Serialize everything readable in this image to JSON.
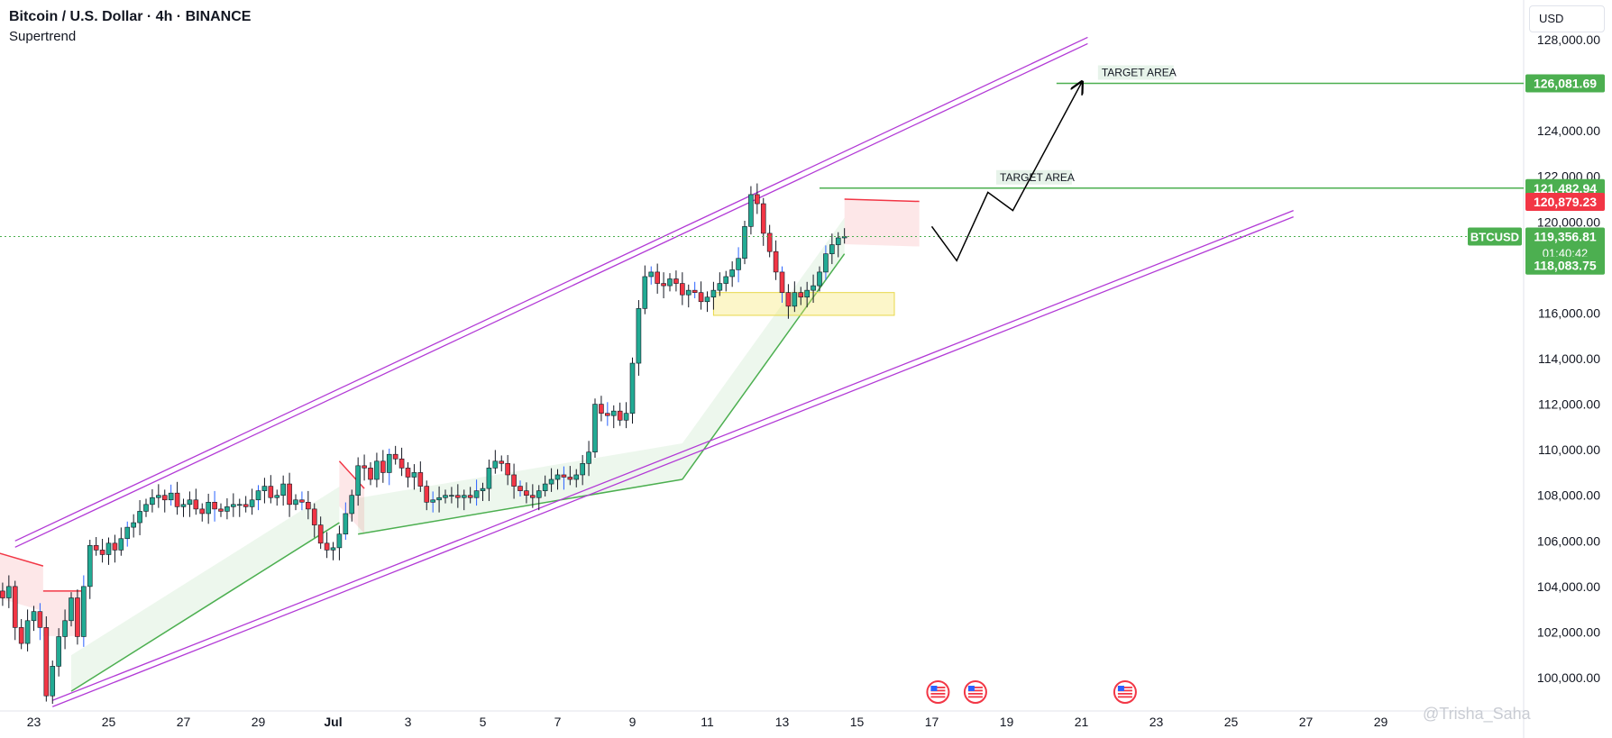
{
  "header": {
    "title": "Bitcoin / U.S. Dollar · 4h · BINANCE",
    "indicator": "Supertrend"
  },
  "currency_button": "USD",
  "watermark": "@Trisha_Saha",
  "colors": {
    "up": "#089981",
    "down": "#f23645",
    "green_body": "#22ab94",
    "channel": "#b23ad6",
    "target": "#4caf50",
    "supertrend_up": "#4caf50",
    "supertrend_down": "#f23645",
    "path": "#000000",
    "zone": "#f5e663"
  },
  "icons": [
    "us-flag-event-icon",
    "us-flag-event-icon",
    "us-flag-event-icon"
  ],
  "chart_data": {
    "type": "candlestick",
    "symbol": "BTCUSD",
    "ylim": [
      98800,
      128200
    ],
    "yticks": [
      100000,
      102000,
      104000,
      106000,
      108000,
      110000,
      112000,
      114000,
      116000,
      118000,
      120000,
      122000,
      124000,
      126000,
      128000
    ],
    "ytick_labels": [
      "100,000.00",
      "102,000.00",
      "104,000.00",
      "106,000.00",
      "108,000.00",
      "110,000.00",
      "112,000.00",
      "114,000.00",
      "116,000.00",
      "118,000.00",
      "120,000.00",
      "122,000.00",
      "124,000.00",
      "126,000.00",
      "128,000.00"
    ],
    "x_start": "2025-06-22",
    "x_end": "2025-07-29",
    "xticks": [
      {
        "date": "2025-06-23",
        "label": "23"
      },
      {
        "date": "2025-06-25",
        "label": "25"
      },
      {
        "date": "2025-06-27",
        "label": "27"
      },
      {
        "date": "2025-06-29",
        "label": "29"
      },
      {
        "date": "2025-07-01",
        "label": "Jul"
      },
      {
        "date": "2025-07-03",
        "label": "3"
      },
      {
        "date": "2025-07-05",
        "label": "5"
      },
      {
        "date": "2025-07-07",
        "label": "7"
      },
      {
        "date": "2025-07-09",
        "label": "9"
      },
      {
        "date": "2025-07-11",
        "label": "11"
      },
      {
        "date": "2025-07-13",
        "label": "13"
      },
      {
        "date": "2025-07-15",
        "label": "15"
      },
      {
        "date": "2025-07-17",
        "label": "17"
      },
      {
        "date": "2025-07-19",
        "label": "19"
      },
      {
        "date": "2025-07-21",
        "label": "21"
      },
      {
        "date": "2025-07-23",
        "label": "23"
      },
      {
        "date": "2025-07-25",
        "label": "25"
      },
      {
        "date": "2025-07-27",
        "label": "27"
      },
      {
        "date": "2025-07-29",
        "label": "29"
      }
    ],
    "close_series": [
      103800,
      103500,
      104000,
      102200,
      101500,
      102500,
      102900,
      102200,
      99200,
      100500,
      101800,
      102500,
      103500,
      101800,
      104000,
      105800,
      105600,
      105400,
      105900,
      105600,
      106100,
      106600,
      106800,
      107300,
      107600,
      107900,
      108000,
      107800,
      108100,
      107500,
      107600,
      107800,
      107400,
      107200,
      107700,
      107400,
      107300,
      107500,
      107600,
      107600,
      107500,
      107800,
      108200,
      108400,
      107900,
      108000,
      108500,
      107600,
      107800,
      107700,
      107400,
      106700,
      105900,
      105600,
      105700,
      106300,
      107200,
      108000,
      109300,
      109200,
      108700,
      109500,
      109000,
      109800,
      109600,
      109200,
      108800,
      109000,
      108400,
      107700,
      107800,
      107900,
      108000,
      108000,
      107900,
      108000,
      107900,
      108200,
      108300,
      109200,
      109500,
      109400,
      108900,
      108400,
      108200,
      108000,
      107900,
      108200,
      108500,
      108700,
      108900,
      108800,
      108700,
      108900,
      109400,
      109900,
      112000,
      111600,
      111500,
      111700,
      111300,
      111600,
      113800,
      116200,
      117600,
      117800,
      117300,
      117200,
      117500,
      117300,
      116800,
      117000,
      116900,
      116500,
      116700,
      117000,
      117300,
      117600,
      117900,
      118400,
      119800,
      121200,
      120800,
      119500,
      118700,
      117800,
      116900,
      116300,
      116900,
      116700,
      117000,
      117200,
      117800,
      118600,
      119000,
      119300,
      119357
    ],
    "candles_note": "4h OHLC candles; one candle every 4 hours starting 2025-06-22",
    "supertrend": {
      "down_segments": [
        {
          "x": [
            "2025-06-22",
            "2025-06-23T06:00"
          ],
          "y": [
            105500,
            104900
          ]
        },
        {
          "x": [
            "2025-06-23T06:00",
            "2025-06-24T08:00"
          ],
          "y": [
            103800,
            103800
          ]
        },
        {
          "x": [
            "2025-07-01T04:00",
            "2025-07-01T20:00"
          ],
          "y": [
            109500,
            108300
          ]
        },
        {
          "x": [
            "2025-07-14T16:00",
            "2025-07-16T16:00"
          ],
          "y": [
            121000,
            120900
          ]
        }
      ],
      "up_segments": [
        {
          "x": [
            "2025-06-24T00:00",
            "2025-07-01T04:00"
          ],
          "y": [
            99400,
            106800
          ]
        },
        {
          "x": [
            "2025-07-01T16:00",
            "2025-07-10T08:00"
          ],
          "y": [
            106300,
            108700
          ]
        },
        {
          "x": [
            "2025-07-10T08:00",
            "2025-07-14T16:00"
          ],
          "y": [
            108700,
            118600
          ]
        }
      ]
    },
    "channel": {
      "upper": [
        {
          "x": "2025-06-22T12:00",
          "y": 106000
        },
        {
          "x": "2025-07-21T04:00",
          "y": 128100
        }
      ],
      "lower": [
        {
          "x": "2025-06-23T12:00",
          "y": 99000
        },
        {
          "x": "2025-07-26T16:00",
          "y": 120500
        }
      ]
    },
    "targets": [
      {
        "label": "TARGET AREA",
        "price": 126081.69,
        "price_label": "126,081.69",
        "from": "2025-07-20T08:00"
      },
      {
        "label": "TARGET AREA",
        "price": 121482.94,
        "price_label": "121,482.94",
        "from": "2025-07-14T00:00"
      }
    ],
    "projected_path": [
      {
        "x": "2025-07-17T00:00",
        "y": 119800
      },
      {
        "x": "2025-07-17T16:00",
        "y": 118300
      },
      {
        "x": "2025-07-18T12:00",
        "y": 121300
      },
      {
        "x": "2025-07-19T04:00",
        "y": 120500
      },
      {
        "x": "2025-07-21T00:00",
        "y": 126100
      }
    ],
    "zone": {
      "x": [
        "2025-07-11T04:00",
        "2025-07-16T00:00"
      ],
      "y": [
        115900,
        116900
      ]
    },
    "price_tags": [
      {
        "price": 120879.23,
        "label": "120,879.23",
        "color": "#f23645"
      },
      {
        "price": 119356.81,
        "label": "119,356.81",
        "sub": "01:40:42",
        "color": "#4caf50",
        "name": "BTCUSD"
      },
      {
        "price": 118083.75,
        "label": "118,083.75",
        "color": "#4caf50"
      }
    ],
    "events": [
      "2025-07-17T04:00",
      "2025-07-18T04:00",
      "2025-07-22T04:00"
    ]
  }
}
